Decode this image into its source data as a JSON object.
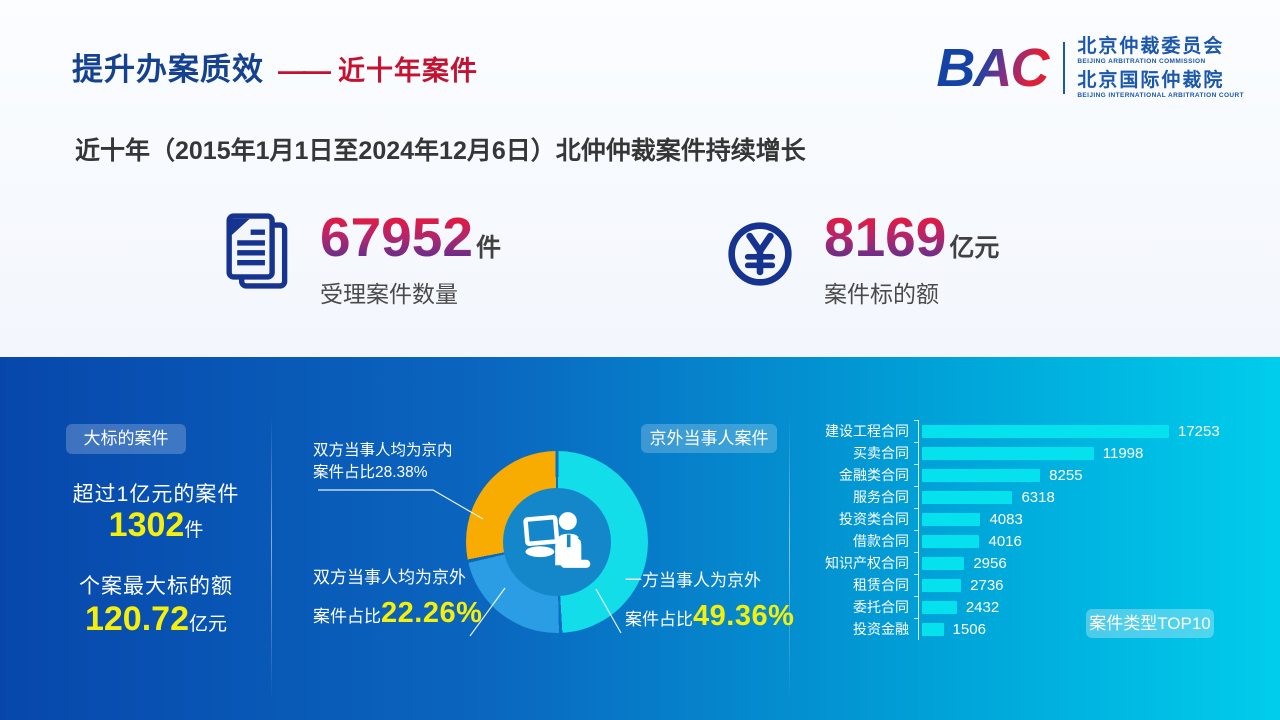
{
  "header": {
    "title": "提升办案质效",
    "title_dash": "——",
    "title_accent": "近十年案件",
    "subtitle": "近十年（2015年1月1日至2024年12月6日）北仲仲裁案件持续增长",
    "logo": {
      "acronym": "BAC",
      "org_cn_1": "北京仲裁委员会",
      "org_en_1": "BEIJING ARBITRATION COMMISSION",
      "org_cn_2": "北京国际仲裁院",
      "org_en_2": "BEIJING INTERNATIONAL ARBITRATION COURT"
    }
  },
  "stats": [
    {
      "icon": "document-icon",
      "value": "67952",
      "unit": "件",
      "label": "受理案件数量"
    },
    {
      "icon": "yuan-icon",
      "value": "8169",
      "unit": "亿元",
      "label": "案件标的额"
    }
  ],
  "panel": {
    "big_cases": {
      "badge": "大标的案件",
      "line1": "超过1亿元的案件",
      "value1": "1302",
      "unit1": "件",
      "line2": "个案最大标的额",
      "value2": "120.72",
      "unit2": "亿元"
    },
    "donut_badge": "京外当事人案件",
    "bar_badge": "案件类型TOP10"
  },
  "chart_data": [
    {
      "type": "pie",
      "title": "京外当事人案件",
      "donut": true,
      "center_icon": "person-at-computer-icon",
      "slices": [
        {
          "label": "一方当事人为京外",
          "prefix": "案件占比",
          "value": 49.36,
          "color": "#12dde9",
          "highlight": true
        },
        {
          "label": "双方当事人均为京外",
          "prefix": "案件占比",
          "value": 22.26,
          "color": "#2a9de4",
          "highlight": true
        },
        {
          "label": "双方当事人均为京内",
          "prefix": "案件占比",
          "value": 28.38,
          "color": "#f8ab00",
          "highlight": false
        }
      ]
    },
    {
      "type": "bar",
      "title": "案件类型TOP10",
      "orientation": "horizontal",
      "categories": [
        "建设工程合同",
        "买卖合同",
        "金融类合同",
        "服务合同",
        "投资类合同",
        "借款合同",
        "知识产权合同",
        "租赁合同",
        "委托合同",
        "投资金融"
      ],
      "values": [
        17253,
        11998,
        8255,
        6318,
        4083,
        4016,
        2956,
        2736,
        2432,
        1506
      ],
      "bar_color": "#05e2ee",
      "xlim": [
        0,
        17253
      ]
    }
  ],
  "colors": {
    "title_navy": "#15418f",
    "accent_red": "#c41230",
    "number_gradient_top": "#ea1839",
    "number_gradient_bottom": "#5c2f91",
    "icon_navy": "#16338f",
    "panel_left": "#0747ab",
    "panel_right": "#00cdec",
    "highlight_yellow": "#f6ef0a",
    "donut_center": "#1487ca"
  }
}
